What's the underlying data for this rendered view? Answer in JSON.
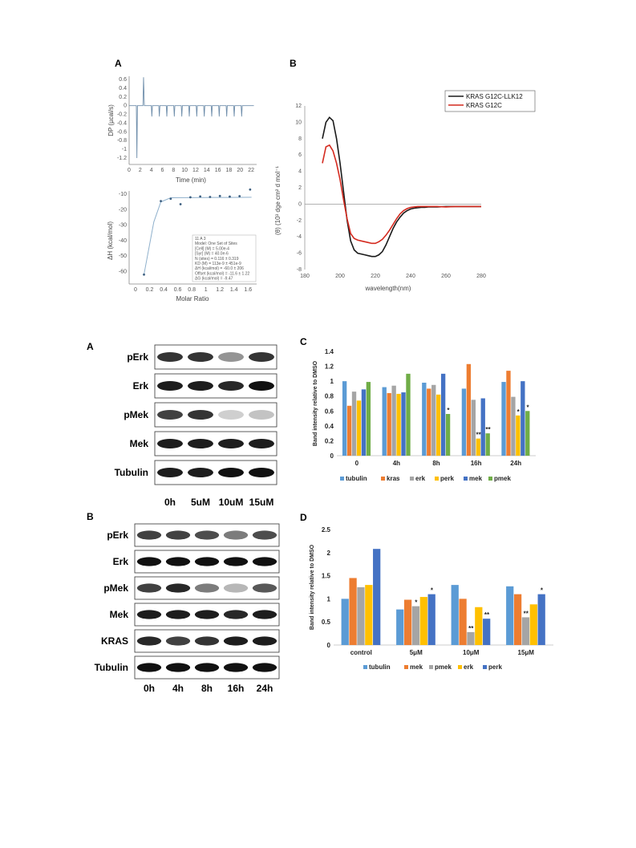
{
  "figure_top": {
    "panel_a": {
      "letter": "A",
      "itc_top": {
        "ylabel": "DP (µcal/s)",
        "xlabel": "Time (min)",
        "yticks": [
          "0.6",
          "0.4",
          "0.2",
          "0",
          "-0.2",
          "-0.4",
          "-0.6",
          "-0.8",
          "-1",
          "-1.2"
        ],
        "xticks": [
          "0",
          "2",
          "4",
          "6",
          "8",
          "10",
          "12",
          "14",
          "16",
          "18",
          "20",
          "22"
        ]
      },
      "itc_bottom": {
        "ylabel": "ΔH (kcal/mol)",
        "xlabel": "Molar Ratio",
        "yticks": [
          "-10",
          "-20",
          "-30",
          "-40",
          "-50",
          "-60"
        ],
        "xticks": [
          "0",
          "0.2",
          "0.4",
          "0.6",
          "0.8",
          "1",
          "1.2",
          "1.4",
          "1.6"
        ],
        "fit_box": [
          "11 A 3",
          "Model: One Set of Sites",
          "[Cell] (M) = 5.00e-4",
          "[Syr] (M) = 40.0e-6",
          "N (sites) = 0.116 ± 0.319",
          "KD (M) = 113e-9 ± 451e-9",
          "ΔH (kcal/mol) = -60.0 ± 206",
          "Offset (kcal/mol) = -11.6 ± 1.22",
          "ΔG (kcal/mol) = -9.47"
        ]
      }
    },
    "panel_b": {
      "letter": "B",
      "ylabel": "(θ) (10³ dge cm² d mol⁻¹",
      "xlabel": "wavelength(nm)"
    }
  },
  "figure_bottom": {
    "blot_a": {
      "letter": "A",
      "rows": [
        "pErk",
        "Erk",
        "pMek",
        "Mek",
        "Tubulin"
      ],
      "columns": [
        "0h",
        "5uM",
        "10uM",
        "15uM"
      ]
    },
    "blot_b": {
      "letter": "B",
      "rows": [
        "pErk",
        "Erk",
        "pMek",
        "Mek",
        "KRAS",
        "Tubulin"
      ],
      "columns": [
        "0h",
        "4h",
        "8h",
        "16h",
        "24h"
      ]
    },
    "chart_c_letter": "C",
    "chart_d_letter": "D"
  },
  "chart_data": [
    {
      "id": "cd-spectrum",
      "type": "line",
      "xlabel": "wavelength(nm)",
      "ylabel": "(θ) (10³ dge cm² d mol⁻¹",
      "xlim": [
        180,
        280
      ],
      "ylim": [
        -8,
        12
      ],
      "xticks": [
        180,
        200,
        220,
        240,
        260,
        280
      ],
      "yticks": [
        -8,
        -6,
        -4,
        -2,
        0,
        2,
        4,
        6,
        8,
        10,
        12
      ],
      "legend_position": "top-right",
      "series": [
        {
          "name": "KRAS G12C-LLK12",
          "color": "#1a1a1a",
          "x": [
            190,
            192,
            194,
            196,
            198,
            200,
            202,
            204,
            206,
            208,
            210,
            212,
            214,
            216,
            218,
            220,
            222,
            224,
            226,
            228,
            230,
            232,
            234,
            236,
            238,
            240,
            242,
            244,
            246,
            248,
            250,
            255,
            260,
            265,
            270,
            275,
            280
          ],
          "y": [
            8.0,
            10.0,
            10.6,
            10.2,
            8.0,
            5.0,
            1.5,
            -2.0,
            -4.5,
            -5.6,
            -6.0,
            -6.1,
            -6.2,
            -6.3,
            -6.4,
            -6.4,
            -6.2,
            -5.8,
            -5.0,
            -4.0,
            -3.0,
            -2.2,
            -1.6,
            -1.1,
            -0.8,
            -0.6,
            -0.5,
            -0.45,
            -0.4,
            -0.4,
            -0.35,
            -0.35,
            -0.3,
            -0.3,
            -0.3,
            -0.3,
            -0.3
          ]
        },
        {
          "name": "KRAS G12C",
          "color": "#d42a1f",
          "x": [
            190,
            192,
            194,
            196,
            198,
            200,
            202,
            204,
            206,
            208,
            210,
            212,
            214,
            216,
            218,
            220,
            222,
            224,
            226,
            228,
            230,
            232,
            234,
            236,
            238,
            240,
            242,
            244,
            246,
            248,
            250,
            255,
            260,
            265,
            270,
            275,
            280
          ],
          "y": [
            5.0,
            7.0,
            7.2,
            6.5,
            5.0,
            3.0,
            0.5,
            -1.8,
            -3.6,
            -4.2,
            -4.4,
            -4.5,
            -4.6,
            -4.7,
            -4.8,
            -4.8,
            -4.6,
            -4.3,
            -3.8,
            -3.2,
            -2.5,
            -1.8,
            -1.2,
            -0.8,
            -0.55,
            -0.4,
            -0.35,
            -0.3,
            -0.3,
            -0.3,
            -0.3,
            -0.3,
            -0.35,
            -0.3,
            -0.3,
            -0.3,
            -0.3
          ]
        }
      ]
    },
    {
      "id": "chart-c",
      "type": "bar",
      "ylabel": "Band intensity relative to DMSO",
      "ylim": [
        0,
        1.4
      ],
      "yticks": [
        0,
        0.2,
        0.4,
        0.6,
        0.8,
        1,
        1.2,
        1.4
      ],
      "categories": [
        "0",
        "4h",
        "8h",
        "16h",
        "24h"
      ],
      "legend_position": "bottom",
      "series": [
        {
          "name": "tubulin",
          "color": "#5b9bd5",
          "values": [
            1.0,
            0.92,
            0.98,
            0.9,
            0.99
          ]
        },
        {
          "name": "kras",
          "color": "#ed7d31",
          "values": [
            0.67,
            0.84,
            0.9,
            1.23,
            1.14
          ]
        },
        {
          "name": "erk",
          "color": "#a5a5a5",
          "values": [
            0.86,
            0.94,
            0.95,
            0.75,
            0.79
          ]
        },
        {
          "name": "perk",
          "color": "#ffc000",
          "values": [
            0.74,
            0.83,
            0.82,
            0.23,
            0.54
          ]
        },
        {
          "name": "mek",
          "color": "#4472c4",
          "values": [
            0.89,
            0.85,
            1.1,
            0.77,
            1.0
          ]
        },
        {
          "name": "pmek",
          "color": "#70ad47",
          "values": [
            0.99,
            1.1,
            0.56,
            0.3,
            0.6
          ]
        }
      ],
      "annotations": [
        {
          "category": "8h",
          "series": "pmek",
          "text": "*"
        },
        {
          "category": "16h",
          "series": "perk",
          "text": "**"
        },
        {
          "category": "16h",
          "series": "pmek",
          "text": "**"
        },
        {
          "category": "24h",
          "series": "perk",
          "text": "*"
        },
        {
          "category": "24h",
          "series": "pmek",
          "text": "*"
        }
      ]
    },
    {
      "id": "chart-d",
      "type": "bar",
      "ylabel": "Band intensity relative to DMSO",
      "ylim": [
        0,
        2.5
      ],
      "yticks": [
        0,
        0.5,
        1,
        1.5,
        2,
        2.5
      ],
      "categories": [
        "control",
        "5μM",
        "10μM",
        "15μM"
      ],
      "legend_position": "bottom",
      "series": [
        {
          "name": "tubulin",
          "color": "#5b9bd5",
          "values": [
            1.0,
            0.77,
            1.3,
            1.27
          ]
        },
        {
          "name": "mek",
          "color": "#ed7d31",
          "values": [
            1.45,
            0.98,
            1.0,
            1.1
          ]
        },
        {
          "name": "pmek",
          "color": "#a5a5a5",
          "values": [
            1.25,
            0.84,
            0.28,
            0.6
          ]
        },
        {
          "name": "erk",
          "color": "#ffc000",
          "values": [
            1.3,
            1.04,
            0.82,
            0.88
          ]
        },
        {
          "name": "perk",
          "color": "#4472c4",
          "values": [
            2.08,
            1.1,
            0.57,
            1.1
          ]
        }
      ],
      "annotations": [
        {
          "category": "5μM",
          "series": "pmek",
          "text": "*"
        },
        {
          "category": "5μM",
          "series": "perk",
          "text": "*"
        },
        {
          "category": "10μM",
          "series": "pmek",
          "text": "**"
        },
        {
          "category": "10μM",
          "series": "perk",
          "text": "**"
        },
        {
          "category": "15μM",
          "series": "pmek",
          "text": "**"
        },
        {
          "category": "15μM",
          "series": "perk",
          "text": "*"
        }
      ]
    }
  ]
}
